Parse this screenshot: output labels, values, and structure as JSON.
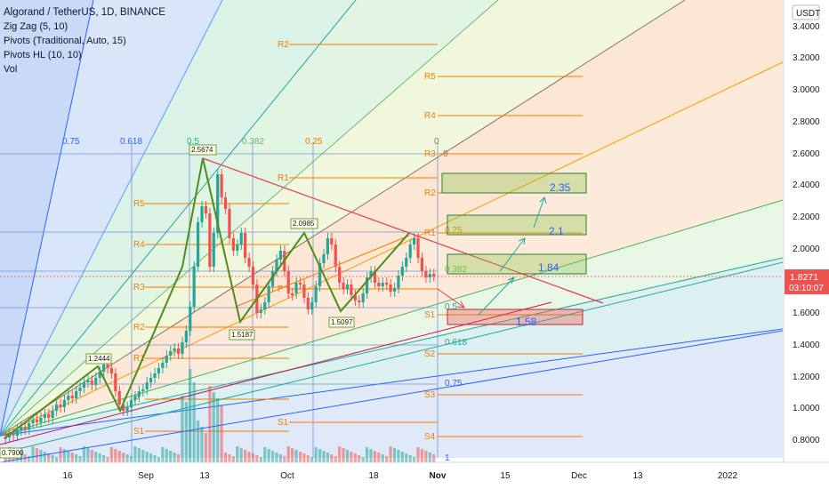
{
  "header": {
    "title": "Algorand / TetherUS, 1D, BINANCE",
    "indicators": [
      "Zig Zag (5, 10)",
      "Pivots (Traditional, Auto, 15)",
      "Pivots HL (10, 10)",
      "Vol"
    ]
  },
  "price_scale": {
    "currency": "USDT",
    "ticks": [
      "3.4000",
      "3.2000",
      "3.0000",
      "2.8000",
      "2.6000",
      "2.4000",
      "2.2000",
      "2.0000",
      "1.8000",
      "1.6000",
      "1.4000",
      "1.2000",
      "1.0000",
      "0.8000"
    ],
    "last_price": "1.8271",
    "countdown": "03:10:07"
  },
  "time_scale": {
    "ticks": [
      "16",
      "Sep",
      "13",
      "Oct",
      "18",
      "Nov",
      "15",
      "Dec",
      "13",
      "2022"
    ]
  },
  "fib_fan_labels": [
    "0.75",
    "0.618",
    "0.5",
    "0.382",
    "0.25",
    "0"
  ],
  "fib_levels_right": [
    "0",
    "0.25",
    "0.382",
    "0.5",
    "0.618",
    "0.75",
    "1"
  ],
  "pivot_labels": {
    "current": [
      "R5",
      "R4",
      "R3",
      "R2",
      "R1",
      "S1",
      "S2",
      "S3",
      "S4"
    ],
    "past_a": [
      "R5",
      "R4",
      "R3",
      "R2",
      "R1",
      "P",
      "S1"
    ],
    "past_b": [
      "R2",
      "R1",
      "P",
      "S1"
    ]
  },
  "zigzag_labels": [
    "2.5674",
    "2.0985",
    "1.5187",
    "1.5097",
    "1.2444",
    "0.7900"
  ],
  "targets": [
    "2.35",
    "2.1",
    "1.84",
    "1.58"
  ],
  "colors": {
    "bull": "#26a69a",
    "bear": "#ef5350",
    "zigzag": "#4f8c1e",
    "pivot": "#f57c00",
    "price_tag": "#ef5350",
    "axis_bg": "#ffffff"
  }
}
